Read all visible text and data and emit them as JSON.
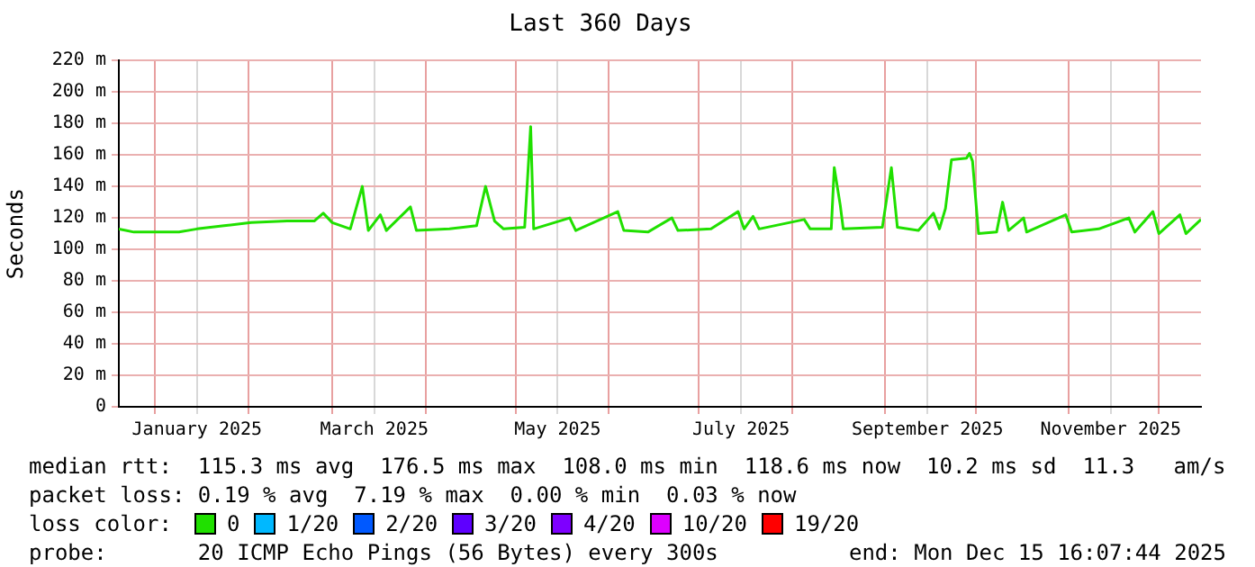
{
  "chart_data": {
    "type": "line",
    "title": "Last 360 Days",
    "ylabel": "Seconds",
    "x": [
      "2024-12-20",
      "2024-12-25",
      "2025-01-09",
      "2025-01-15",
      "2025-01-24",
      "2025-02-02",
      "2025-02-14",
      "2025-02-23",
      "2025-02-26",
      "2025-03-01",
      "2025-03-07",
      "2025-03-11",
      "2025-03-13",
      "2025-03-17",
      "2025-03-19",
      "2025-03-27",
      "2025-03-29",
      "2025-04-09",
      "2025-04-18",
      "2025-04-21",
      "2025-04-24",
      "2025-04-27",
      "2025-05-04",
      "2025-05-06",
      "2025-05-07",
      "2025-05-19",
      "2025-05-21",
      "2025-06-04",
      "2025-06-06",
      "2025-06-14",
      "2025-06-22",
      "2025-06-24",
      "2025-07-05",
      "2025-07-14",
      "2025-07-16",
      "2025-07-19",
      "2025-07-21",
      "2025-08-05",
      "2025-08-07",
      "2025-08-14",
      "2025-08-15",
      "2025-08-17",
      "2025-08-18",
      "2025-08-31",
      "2025-09-03",
      "2025-09-05",
      "2025-09-12",
      "2025-09-17",
      "2025-09-19",
      "2025-09-21",
      "2025-09-23",
      "2025-09-28",
      "2025-09-29",
      "2025-09-30",
      "2025-10-02",
      "2025-10-08",
      "2025-10-10",
      "2025-10-12",
      "2025-10-17",
      "2025-10-18",
      "2025-10-31",
      "2025-11-02",
      "2025-11-11",
      "2025-11-21",
      "2025-11-23",
      "2025-11-29",
      "2025-12-01",
      "2025-12-08",
      "2025-12-10",
      "2025-12-15"
    ],
    "series": [
      {
        "name": "0",
        "color": "#20e000",
        "values": [
          113,
          111,
          111,
          113,
          115,
          117,
          118,
          118,
          123,
          117,
          113,
          140,
          112,
          122,
          112,
          127,
          112,
          113,
          115,
          140,
          118,
          113,
          114,
          178,
          113,
          120,
          112,
          124,
          112,
          111,
          120,
          112,
          113,
          124,
          113,
          121,
          113,
          119,
          113,
          113,
          152,
          128,
          113,
          114,
          152,
          114,
          112,
          123,
          113,
          126,
          157,
          158,
          161,
          156,
          110,
          111,
          130,
          112,
          120,
          111,
          122,
          111,
          113,
          120,
          111,
          124,
          110,
          122,
          110,
          119
        ]
      },
      {
        "name": "1/20",
        "color": "#00b8ff",
        "values": [
          null,
          null,
          null,
          null,
          null,
          null,
          null,
          null,
          null,
          null,
          null,
          null,
          null,
          null,
          null,
          null,
          null,
          null,
          null,
          null,
          null,
          null,
          null,
          null,
          null,
          null,
          null,
          null,
          null,
          null,
          null,
          null,
          null,
          null,
          null,
          null,
          null,
          null,
          null,
          null,
          null,
          null,
          null,
          null,
          null,
          null,
          null,
          null,
          null,
          null,
          null,
          null,
          null,
          null,
          null,
          null,
          null,
          null,
          null,
          null,
          null,
          null,
          null,
          null,
          null,
          null,
          null,
          null,
          null,
          null
        ]
      },
      {
        "name": "2/20",
        "color": "#0059ff",
        "values": [
          null,
          null,
          null,
          null,
          null,
          null,
          null,
          null,
          null,
          null,
          null,
          null,
          null,
          null,
          null,
          null,
          null,
          null,
          null,
          null,
          null,
          null,
          null,
          null,
          null,
          null,
          null,
          null,
          null,
          null,
          null,
          null,
          null,
          null,
          null,
          null,
          null,
          null,
          null,
          null,
          null,
          null,
          null,
          null,
          null,
          null,
          null,
          null,
          null,
          null,
          null,
          null,
          null,
          null,
          null,
          null,
          null,
          null,
          null,
          null,
          null,
          null,
          null,
          null,
          null,
          null,
          null,
          null,
          null,
          null
        ]
      },
      {
        "name": "3/20",
        "color": "#5e00ff",
        "values": [
          null,
          null,
          null,
          null,
          null,
          null,
          null,
          null,
          null,
          null,
          null,
          null,
          null,
          null,
          null,
          null,
          null,
          null,
          null,
          null,
          null,
          null,
          null,
          null,
          null,
          null,
          null,
          null,
          null,
          null,
          null,
          null,
          null,
          null,
          null,
          null,
          null,
          null,
          null,
          null,
          null,
          null,
          null,
          null,
          null,
          null,
          null,
          null,
          null,
          null,
          null,
          null,
          null,
          null,
          null,
          null,
          null,
          null,
          null,
          null,
          null,
          null,
          null,
          null,
          null,
          null,
          null,
          null,
          null,
          null
        ]
      },
      {
        "name": "4/20",
        "color": "#7e00ff",
        "values": [
          null,
          null,
          null,
          null,
          null,
          null,
          null,
          null,
          null,
          null,
          null,
          null,
          null,
          null,
          null,
          null,
          null,
          null,
          null,
          null,
          null,
          null,
          null,
          null,
          null,
          null,
          null,
          null,
          null,
          null,
          null,
          null,
          null,
          null,
          null,
          null,
          null,
          null,
          null,
          null,
          null,
          null,
          null,
          null,
          null,
          null,
          null,
          null,
          null,
          null,
          null,
          null,
          null,
          null,
          null,
          null,
          null,
          null,
          null,
          null,
          null,
          null,
          null,
          null,
          null,
          null,
          null,
          null,
          null,
          null
        ]
      },
      {
        "name": "10/20",
        "color": "#dd00ff",
        "values": [
          null,
          null,
          null,
          null,
          null,
          null,
          null,
          null,
          null,
          null,
          null,
          null,
          null,
          null,
          null,
          null,
          null,
          null,
          null,
          null,
          null,
          null,
          null,
          null,
          null,
          null,
          null,
          null,
          null,
          null,
          null,
          null,
          null,
          null,
          null,
          null,
          null,
          null,
          null,
          null,
          null,
          null,
          null,
          null,
          null,
          null,
          null,
          null,
          null,
          null,
          null,
          null,
          null,
          null,
          null,
          null,
          null,
          null,
          null,
          null,
          null,
          null,
          null,
          null,
          null,
          null,
          null,
          null,
          null,
          null
        ]
      },
      {
        "name": "19/20",
        "color": "#ff0000",
        "values": [
          null,
          null,
          null,
          null,
          null,
          null,
          null,
          null,
          null,
          null,
          null,
          null,
          null,
          null,
          null,
          null,
          null,
          null,
          null,
          null,
          null,
          null,
          null,
          null,
          null,
          null,
          null,
          null,
          null,
          null,
          null,
          null,
          null,
          null,
          null,
          null,
          null,
          null,
          null,
          null,
          null,
          null,
          null,
          null,
          null,
          null,
          null,
          null,
          null,
          null,
          null,
          null,
          null,
          null,
          null,
          null,
          null,
          null,
          null,
          null,
          null,
          null,
          null,
          null,
          null,
          null,
          null,
          null,
          null,
          null
        ]
      }
    ],
    "legend": "bottom",
    "legend_title": "loss color:",
    "xlim": [
      "2024-12-20",
      "2025-12-15"
    ],
    "xticks": [
      {
        "value": "2025-01-01",
        "label": null
      },
      {
        "value": "2025-01-15",
        "label": "January 2025"
      },
      {
        "value": "2025-02-01",
        "label": null
      },
      {
        "value": "2025-03-01",
        "label": null
      },
      {
        "value": "2025-03-15",
        "label": "March 2025"
      },
      {
        "value": "2025-04-01",
        "label": null
      },
      {
        "value": "2025-05-01",
        "label": null
      },
      {
        "value": "2025-05-15",
        "label": "May 2025"
      },
      {
        "value": "2025-06-01",
        "label": null
      },
      {
        "value": "2025-07-01",
        "label": null
      },
      {
        "value": "2025-07-15",
        "label": "July 2025"
      },
      {
        "value": "2025-08-01",
        "label": null
      },
      {
        "value": "2025-09-01",
        "label": null
      },
      {
        "value": "2025-09-15",
        "label": "September 2025"
      },
      {
        "value": "2025-10-01",
        "label": null
      },
      {
        "value": "2025-11-01",
        "label": null
      },
      {
        "value": "2025-11-15",
        "label": "November 2025"
      },
      {
        "value": "2025-12-01",
        "label": null
      }
    ],
    "ylim": [
      0,
      220
    ],
    "yticks": [
      0,
      {
        "value": 20,
        "label": "20 m"
      },
      {
        "value": 40,
        "label": "40 m"
      },
      {
        "value": 60,
        "label": "60 m"
      },
      {
        "value": 80,
        "label": "80 m"
      },
      {
        "value": 100,
        "label": "100 m"
      },
      {
        "value": 120,
        "label": "120 m"
      },
      {
        "value": 140,
        "label": "140 m"
      },
      {
        "value": 160,
        "label": "160 m"
      },
      {
        "value": 180,
        "label": "180 m"
      },
      {
        "value": 200,
        "label": "200 m"
      },
      {
        "value": 220,
        "label": "220 m"
      }
    ],
    "grid": true,
    "marker": "none",
    "line_style": "solid",
    "annotations": [
      "median rtt:  115.3 ms avg  176.5 ms max  108.0 ms min  118.6 ms now  10.2 ms sd  11.3   am/s",
      "packet loss: 0.19 % avg  7.19 % max  0.00 % min  0.03 % now",
      "probe:       20 ICMP Echo Pings (56 Bytes) every 300s",
      "end: Mon Dec 15 16:07:44 2025"
    ]
  }
}
